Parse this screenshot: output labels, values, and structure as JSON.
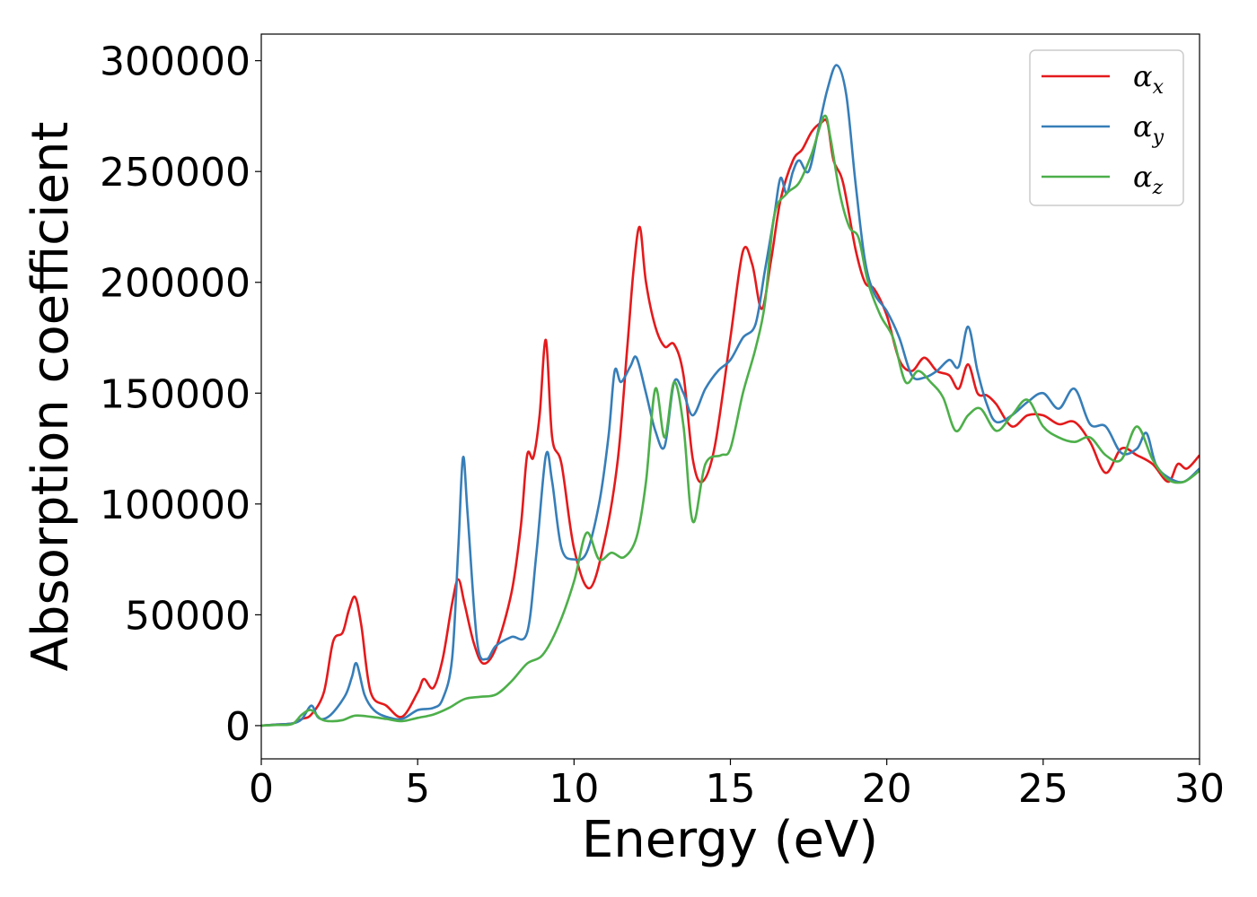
{
  "chart_data": {
    "type": "line",
    "xlabel": "Energy (eV)",
    "ylabel": "Absorption coefficient",
    "xlim": [
      0,
      30
    ],
    "ylim": [
      -15000,
      312000
    ],
    "xticks": [
      0,
      5,
      10,
      15,
      20,
      25,
      30
    ],
    "yticks": [
      0,
      50000,
      100000,
      150000,
      200000,
      250000,
      300000
    ],
    "grid": false,
    "legend_position": "top-right",
    "series": [
      {
        "name": "α",
        "subscript": "x",
        "color": "#e41a1c",
        "x": [
          0,
          0.5,
          1,
          1.3,
          1.6,
          2,
          2.3,
          2.6,
          2.8,
          3,
          3.2,
          3.5,
          4,
          4.5,
          5,
          5.2,
          5.5,
          5.8,
          6.1,
          6.3,
          6.5,
          6.8,
          7.1,
          7.5,
          8,
          8.3,
          8.5,
          8.7,
          8.9,
          9.1,
          9.3,
          9.6,
          10,
          10.5,
          11,
          11.4,
          11.7,
          11.9,
          12.1,
          12.3,
          12.6,
          12.9,
          13.2,
          13.5,
          13.8,
          14.1,
          14.5,
          15,
          15.4,
          15.7,
          16,
          16.3,
          16.6,
          17,
          17.3,
          17.6,
          17.9,
          18.1,
          18.3,
          18.6,
          19,
          19.3,
          19.6,
          20,
          20.4,
          20.8,
          21.2,
          21.6,
          22,
          22.3,
          22.6,
          22.9,
          23.2,
          23.5,
          24,
          24.5,
          25,
          25.5,
          26,
          26.5,
          27,
          27.5,
          28,
          28.5,
          29,
          29.3,
          29.6,
          30
        ],
        "y": [
          0,
          500,
          1000,
          3000,
          5000,
          15000,
          38000,
          42000,
          52000,
          58000,
          45000,
          15000,
          9000,
          4000,
          15000,
          21000,
          17000,
          30000,
          55000,
          66000,
          55000,
          37000,
          28000,
          35000,
          60000,
          90000,
          122000,
          121000,
          140000,
          174000,
          130000,
          118000,
          80000,
          62000,
          85000,
          120000,
          170000,
          205000,
          225000,
          200000,
          180000,
          171000,
          172000,
          158000,
          120000,
          110000,
          126000,
          175000,
          214000,
          208000,
          188000,
          210000,
          237000,
          255000,
          260000,
          268000,
          272000,
          272000,
          255000,
          245000,
          215000,
          200000,
          197000,
          185000,
          165000,
          160000,
          166000,
          160000,
          158000,
          152000,
          163000,
          150000,
          149000,
          145000,
          135000,
          140000,
          140000,
          136000,
          137000,
          128000,
          114000,
          125000,
          122000,
          118000,
          110000,
          118000,
          116000,
          122000
        ]
      },
      {
        "name": "α",
        "subscript": "y",
        "color": "#377eb8",
        "x": [
          0,
          0.5,
          1,
          1.3,
          1.6,
          1.8,
          2,
          2.3,
          2.7,
          2.9,
          3.05,
          3.3,
          3.6,
          4,
          4.5,
          5,
          5.5,
          5.8,
          6.1,
          6.3,
          6.45,
          6.6,
          6.9,
          7.2,
          7.5,
          8,
          8.5,
          8.8,
          9.1,
          9.3,
          9.6,
          10,
          10.4,
          10.8,
          11.1,
          11.3,
          11.5,
          11.8,
          12,
          12.3,
          12.6,
          12.9,
          13.2,
          13.5,
          13.8,
          14.2,
          14.6,
          15,
          15.4,
          15.8,
          16.1,
          16.4,
          16.6,
          16.8,
          17,
          17.2,
          17.5,
          17.8,
          18.1,
          18.4,
          18.7,
          19,
          19.3,
          19.6,
          20,
          20.4,
          20.8,
          21.2,
          21.6,
          22,
          22.3,
          22.6,
          22.9,
          23.2,
          23.5,
          24,
          24.5,
          25,
          25.5,
          26,
          26.5,
          27,
          27.5,
          28,
          28.3,
          28.6,
          29,
          29.5,
          30
        ],
        "y": [
          0,
          500,
          1000,
          3000,
          9000,
          4000,
          3000,
          6000,
          14000,
          22000,
          28000,
          14000,
          7000,
          4000,
          3000,
          7000,
          8000,
          12000,
          30000,
          80000,
          121000,
          95000,
          38000,
          30000,
          36000,
          40000,
          42000,
          78000,
          122000,
          110000,
          80000,
          75000,
          78000,
          100000,
          130000,
          160000,
          155000,
          162000,
          166000,
          150000,
          133000,
          126000,
          155000,
          150000,
          140000,
          152000,
          160000,
          165000,
          175000,
          181000,
          205000,
          230000,
          247000,
          240000,
          250000,
          255000,
          250000,
          268000,
          287000,
          298000,
          285000,
          245000,
          210000,
          195000,
          187000,
          175000,
          158000,
          157000,
          160000,
          165000,
          162000,
          180000,
          160000,
          145000,
          137000,
          140000,
          146000,
          150000,
          143000,
          152000,
          136000,
          135000,
          123000,
          125000,
          132000,
          118000,
          112000,
          110000,
          116000
        ]
      },
      {
        "name": "α",
        "subscript": "z",
        "color": "#4daf4a",
        "x": [
          0,
          0.5,
          1,
          1.3,
          1.6,
          1.9,
          2.2,
          2.6,
          3,
          3.5,
          4,
          4.5,
          5,
          5.5,
          6,
          6.5,
          7,
          7.5,
          8,
          8.5,
          9,
          9.5,
          10,
          10.4,
          10.8,
          11.2,
          11.6,
          12,
          12.3,
          12.6,
          12.9,
          13.2,
          13.5,
          13.8,
          14.2,
          14.7,
          15,
          15.4,
          15.8,
          16.1,
          16.4,
          16.8,
          17.2,
          17.6,
          18,
          18.2,
          18.5,
          18.8,
          19.1,
          19.4,
          19.8,
          20.2,
          20.6,
          21,
          21.4,
          21.8,
          22.2,
          22.6,
          23,
          23.5,
          24,
          24.5,
          25,
          25.5,
          26,
          26.5,
          27,
          27.5,
          28,
          28.5,
          29,
          29.5,
          30
        ],
        "y": [
          0,
          300,
          800,
          5000,
          7000,
          3000,
          2000,
          2500,
          4500,
          4000,
          3000,
          2000,
          3500,
          5000,
          8000,
          12000,
          13000,
          14000,
          20000,
          28000,
          32000,
          45000,
          65000,
          87000,
          75000,
          78000,
          76000,
          85000,
          110000,
          152000,
          130000,
          155000,
          135000,
          92000,
          118000,
          122000,
          125000,
          150000,
          170000,
          190000,
          230000,
          240000,
          245000,
          258000,
          275000,
          265000,
          240000,
          225000,
          220000,
          200000,
          185000,
          175000,
          155000,
          160000,
          155000,
          148000,
          133000,
          140000,
          143000,
          133000,
          140000,
          147000,
          135000,
          130000,
          128000,
          130000,
          122000,
          120000,
          135000,
          120000,
          111000,
          110000,
          115000
        ]
      }
    ]
  }
}
